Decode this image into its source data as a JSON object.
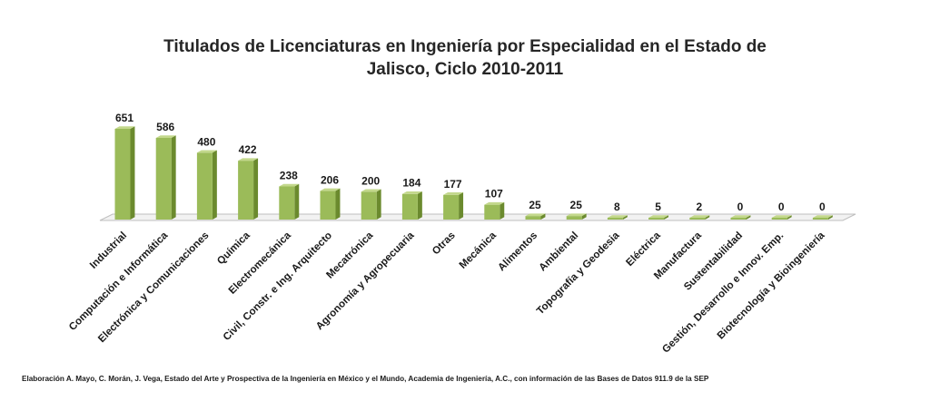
{
  "chart_data": {
    "type": "bar",
    "title_lines": [
      "Titulados de Licenciaturas en Ingeniería por Especialidad en el Estado de",
      "Jalisco, Ciclo 2010-2011"
    ],
    "categories": [
      "Industrial",
      "Computación e Informática",
      "Electrónica y Comunicaciones",
      "Química",
      "Electromecánica",
      "Civil, Constr. e Ing. Arquitecto",
      "Mecatrónica",
      "Agronomía y Agropecuaria",
      "Otras",
      "Mecánica",
      "Alimentos",
      "Ambiental",
      "Topografía y Geodesia",
      "Eléctrica",
      "Manufactura",
      "Sustentabilidad",
      "Gestión, Desarrollo e Innov. Emp.",
      "Biotecnología y Bioingeniería"
    ],
    "values": [
      651,
      586,
      480,
      422,
      238,
      206,
      200,
      184,
      177,
      107,
      25,
      25,
      8,
      5,
      2,
      0,
      0,
      0
    ],
    "ylim": [
      0,
      651
    ],
    "grid": false,
    "legend": "none",
    "colors": {
      "bar_front": "#9bbb59",
      "bar_side": "#6b8a2e",
      "bar_top": "#c3d88c",
      "floor": "#f2f2f2",
      "floor_edge": "#bfbfbf"
    }
  },
  "source_note": "Elaboración A. Mayo, C. Morán, J. Vega, Estado del Arte y Prospectiva de la Ingeniería en México y el Mundo, Academia de Ingeniería, A.C., con información de las Bases de Datos  911.9  de la SEP"
}
